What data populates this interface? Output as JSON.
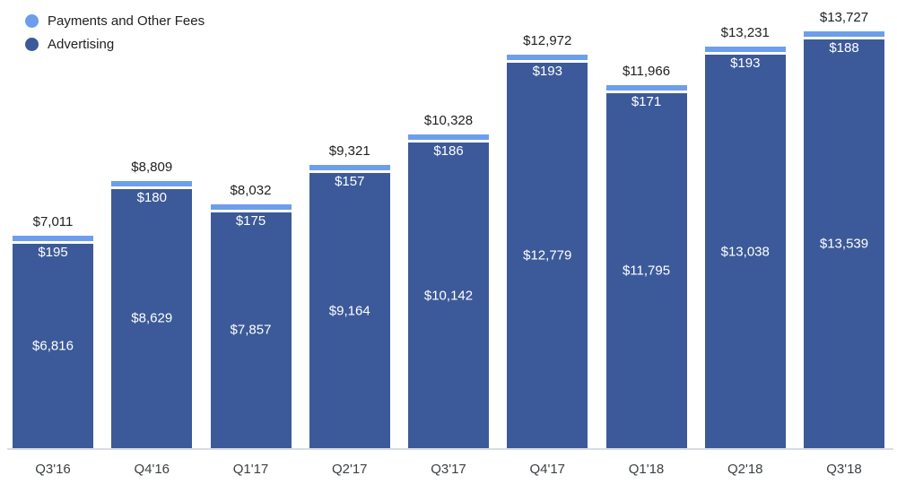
{
  "legend": {
    "items": [
      {
        "label": "Payments and Other Fees",
        "color": "#6d9eeb"
      },
      {
        "label": "Advertising",
        "color": "#3c5a99"
      }
    ]
  },
  "chart_data": {
    "type": "bar",
    "stacked": true,
    "title": "",
    "xlabel": "",
    "ylabel": "",
    "grid": false,
    "legend_position": "top-left",
    "categories": [
      "Q3'16",
      "Q4'16",
      "Q1'17",
      "Q2'17",
      "Q3'17",
      "Q4'17",
      "Q1'18",
      "Q2'18",
      "Q3'18"
    ],
    "series": [
      {
        "name": "Advertising",
        "color": "#3c5a99",
        "values": [
          6816,
          8629,
          7857,
          9164,
          10142,
          12779,
          11795,
          13038,
          13539
        ],
        "labels": [
          "$6,816",
          "$8,629",
          "$7,857",
          "$9,164",
          "$10,142",
          "$12,779",
          "$11,795",
          "$13,038",
          "$13,539"
        ]
      },
      {
        "name": "Payments and Other Fees",
        "color": "#6d9eeb",
        "values": [
          195,
          180,
          175,
          157,
          186,
          193,
          171,
          193,
          188
        ],
        "labels": [
          "$195",
          "$180",
          "$175",
          "$157",
          "$186",
          "$193",
          "$171",
          "$193",
          "$188"
        ]
      }
    ],
    "totals": {
      "values": [
        7011,
        8809,
        8032,
        9321,
        10328,
        12972,
        11966,
        13231,
        13727
      ],
      "labels": [
        "$7,011",
        "$8,809",
        "$8,032",
        "$9,321",
        "$10,328",
        "$12,972",
        "$11,966",
        "$13,231",
        "$13,727"
      ]
    },
    "ylim": [
      0,
      14000
    ]
  }
}
